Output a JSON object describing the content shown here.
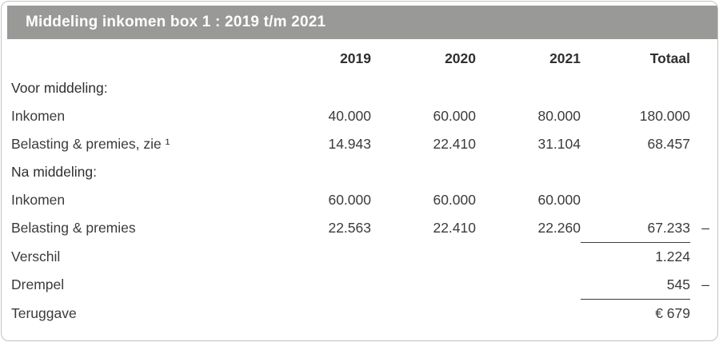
{
  "card": {
    "title": "Middeling inkomen box 1 : 2019 t/m 2021"
  },
  "table": {
    "columns": [
      "",
      "2019",
      "2020",
      "2021",
      "Totaal"
    ],
    "rows": [
      {
        "label": "Voor middeling:"
      },
      {
        "label": "Inkomen",
        "values": [
          "40.000",
          "60.000",
          "80.000",
          "180.000"
        ]
      },
      {
        "label": "Belasting & premies, zie ¹",
        "values": [
          "14.943",
          "22.410",
          "31.104",
          "68.457"
        ]
      },
      {
        "label": "Na middeling:"
      },
      {
        "label": "Inkomen",
        "values": [
          "60.000",
          "60.000",
          "60.000",
          ""
        ]
      },
      {
        "label": "Belasting & premies",
        "values": [
          "22.563",
          "22.410",
          "22.260",
          "67.233"
        ],
        "minus": "–"
      },
      {
        "label": "Verschil",
        "values": [
          "",
          "",
          "",
          "1.224"
        ]
      },
      {
        "label": "Drempel",
        "values": [
          "",
          "",
          "",
          "545"
        ],
        "minus": "–"
      },
      {
        "label": "Teruggave",
        "values": [
          "",
          "",
          "",
          "€ 679"
        ]
      }
    ]
  },
  "colors": {
    "header_bg": "#999998",
    "header_text": "#ffffff",
    "body_text": "#3b3b3b",
    "heading_text": "#2f2f2f",
    "card_border": "#c3c3c3",
    "rule": "#3c3c3c"
  }
}
